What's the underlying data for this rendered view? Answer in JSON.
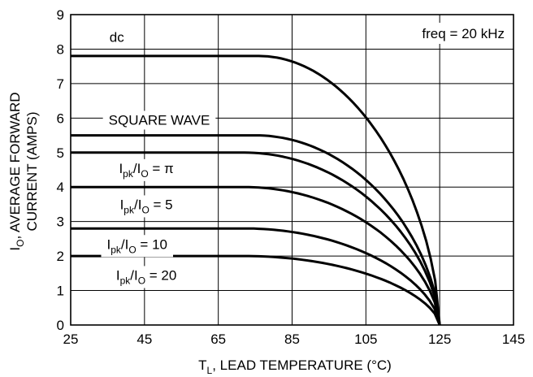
{
  "chart_data": {
    "type": "line",
    "title": "",
    "annotation": "freq = 20 kHz",
    "xlabel": {
      "main": "T",
      "sub": "L",
      "rest": ", LEAD TEMPERATURE (°C)"
    },
    "ylabel": {
      "line1": {
        "main": "I",
        "sub": "O",
        "rest": ", AVERAGE FORWARD"
      },
      "line2": "CURRENT (AMPS)"
    },
    "xlim": [
      25,
      145
    ],
    "ylim": [
      0,
      9
    ],
    "x_ticks": [
      25,
      45,
      65,
      85,
      105,
      125,
      145
    ],
    "y_ticks": [
      0,
      1,
      2,
      3,
      4,
      5,
      6,
      7,
      8,
      9
    ],
    "grid": true,
    "series": [
      {
        "name": "dc",
        "x": [
          25,
          76,
          125
        ],
        "y": [
          7.8,
          7.8,
          0
        ]
      },
      {
        "name": "SQUARE WAVE",
        "x": [
          25,
          75,
          125
        ],
        "y": [
          5.5,
          5.5,
          0
        ]
      },
      {
        "name": "Ipk/IO = π",
        "x": [
          25,
          72,
          125
        ],
        "y": [
          5.0,
          5.0,
          0
        ]
      },
      {
        "name": "Ipk/IO = 5",
        "x": [
          25,
          72,
          125
        ],
        "y": [
          4.0,
          4.0,
          0
        ]
      },
      {
        "name": "Ipk/IO = 10",
        "x": [
          25,
          72,
          125
        ],
        "y": [
          2.8,
          2.8,
          0
        ]
      },
      {
        "name": "Ipk/IO = 20",
        "x": [
          25,
          72,
          125
        ],
        "y": [
          2.0,
          2.0,
          0
        ]
      }
    ],
    "series_labels": [
      {
        "main": "dc"
      },
      {
        "main": "SQUARE WAVE"
      },
      {
        "main": "I",
        "sub": "pk",
        "mid": "/I",
        "sub2": "O",
        "rest": " = π"
      },
      {
        "main": "I",
        "sub": "pk",
        "mid": "/I",
        "sub2": "O",
        "rest": " = 5"
      },
      {
        "main": "I",
        "sub": "pk",
        "mid": "/I",
        "sub2": "O",
        "rest": " = 10"
      },
      {
        "main": "I",
        "sub": "pk",
        "mid": "/I",
        "sub2": "O",
        "rest": " = 20"
      }
    ]
  }
}
